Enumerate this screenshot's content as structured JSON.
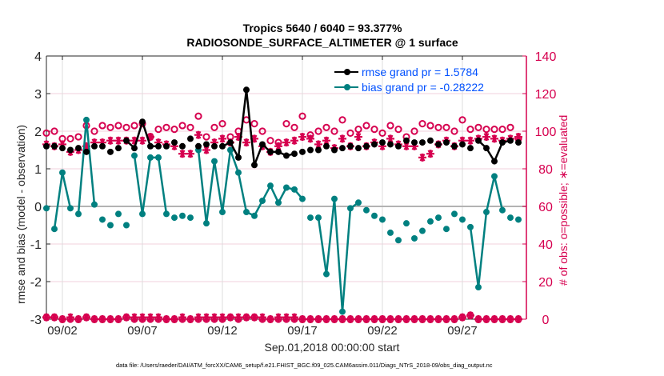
{
  "chart_data": {
    "type": "line",
    "title": [
      "Tropics 5640 / 6040 = 93.377%",
      "RADIOSONDE_SURFACE_ALTIMETER @ 1 surface"
    ],
    "xlabel": "Sep.01,2018 00:00:00 start",
    "ylabel_left": "rmse and bias (model - observation)",
    "ylabel_right": "# of obs: o=possible; ∗=evaluated",
    "footnote": "data file: /Users/raeder/DAI/ATM_forcXX/CAM6_setup/f.e21.FHIST_BGC.f09_025.CAM6assim.011/Diags_NTrS_2018-09/obs_diag_output.nc",
    "x_unit": "days since Sep.01,2018 00:00:00",
    "xlim": [
      1,
      31
    ],
    "ylim_left": [
      -3,
      4
    ],
    "ylim_right": [
      0,
      140
    ],
    "yticks_left": [
      "-3",
      "-2",
      "-1",
      "0",
      "1",
      "2",
      "3",
      "4"
    ],
    "yticks_right": [
      "0",
      "20",
      "40",
      "60",
      "80",
      "100",
      "120",
      "140"
    ],
    "xticks": [
      {
        "day": 2,
        "label": "09/02"
      },
      {
        "day": 7,
        "label": "09/07"
      },
      {
        "day": 12,
        "label": "09/12"
      },
      {
        "day": 17,
        "label": "09/17"
      },
      {
        "day": 22,
        "label": "09/22"
      },
      {
        "day": 27,
        "label": "09/27"
      }
    ],
    "grid": true,
    "legend_position": "top-right",
    "colors": {
      "rmse": "#000000",
      "bias": "#008080",
      "counts": "#d6004f",
      "zero_line": "#b3b3b3"
    },
    "x": [
      1.0,
      1.5,
      2.0,
      2.5,
      3.0,
      3.5,
      4.0,
      4.5,
      5.0,
      5.5,
      6.0,
      6.5,
      7.0,
      7.5,
      8.0,
      8.5,
      9.0,
      9.5,
      10.0,
      10.5,
      11.0,
      11.5,
      12.0,
      12.5,
      13.0,
      13.5,
      14.0,
      14.5,
      15.0,
      15.5,
      16.0,
      16.5,
      17.0,
      17.5,
      18.0,
      18.5,
      19.0,
      19.5,
      20.0,
      20.5,
      21.0,
      21.5,
      22.0,
      22.5,
      23.0,
      23.5,
      24.0,
      24.5,
      25.0,
      25.5,
      26.0,
      26.5,
      27.0,
      27.5,
      28.0,
      28.5,
      29.0,
      29.5,
      30.0,
      30.5
    ],
    "series": [
      {
        "name": "rmse grand pr = 1.5784",
        "marker": "filled-circle",
        "axis": "left",
        "values": [
          1.6,
          1.6,
          1.55,
          1.5,
          1.55,
          1.45,
          1.6,
          1.6,
          1.45,
          1.55,
          1.75,
          1.55,
          2.25,
          1.6,
          1.6,
          1.6,
          1.7,
          1.6,
          1.8,
          1.6,
          1.65,
          1.6,
          1.6,
          1.7,
          1.3,
          3.1,
          1.1,
          1.65,
          1.45,
          1.45,
          1.35,
          1.4,
          1.45,
          1.5,
          1.5,
          1.6,
          1.5,
          1.55,
          1.6,
          1.55,
          1.6,
          1.65,
          1.7,
          1.65,
          1.6,
          1.75,
          1.7,
          1.7,
          1.75,
          1.65,
          1.7,
          1.6,
          1.65,
          1.55,
          1.75,
          1.55,
          1.2,
          1.7,
          1.75,
          1.7
        ]
      },
      {
        "name": "bias grand pr = -0.28222",
        "marker": "filled-circle",
        "axis": "left",
        "values": [
          -0.05,
          -0.6,
          0.9,
          -0.05,
          -0.2,
          2.3,
          0.05,
          -0.35,
          -0.5,
          -0.2,
          -0.5,
          1.35,
          -0.2,
          1.3,
          1.3,
          -0.2,
          -0.3,
          -0.25,
          -0.3,
          1.5,
          -0.45,
          1.2,
          -0.15,
          1.5,
          0.9,
          -0.15,
          -0.25,
          0.15,
          0.55,
          0.1,
          0.5,
          0.45,
          0.2,
          -0.3,
          -0.3,
          -1.8,
          0.2,
          -2.8,
          -0.05,
          0.1,
          -0.1,
          -0.25,
          -0.35,
          -0.7,
          -0.9,
          -0.45,
          -0.85,
          -0.65,
          -0.4,
          -0.3,
          -0.6,
          -0.2,
          -0.35,
          -0.55,
          -2.15,
          -0.15,
          0.8,
          -0.1,
          -0.3,
          -0.35
        ]
      },
      {
        "name": "possible",
        "marker": "open-circle",
        "axis": "right",
        "values": [
          99,
          100,
          96,
          96,
          97,
          103,
          100,
          103,
          102,
          103,
          102,
          103,
          104,
          97,
          101,
          102,
          101,
          103,
          102,
          108,
          97,
          102,
          104,
          97,
          100,
          106,
          104,
          100,
          95,
          94,
          104,
          102,
          108,
          98,
          100,
          102,
          100,
          106,
          99,
          101,
          103,
          101,
          99,
          103,
          101,
          97,
          100,
          104,
          103,
          102,
          102,
          100,
          106,
          101,
          102,
          101,
          101,
          101,
          102,
          96
        ]
      },
      {
        "name": "evaluated",
        "marker": "asterisk",
        "axis": "right",
        "values": [
          93,
          92,
          93,
          89,
          90,
          92,
          94,
          94,
          95,
          95,
          95,
          95,
          95,
          97,
          94,
          93,
          92,
          88,
          88,
          98,
          90,
          94,
          96,
          94,
          97,
          94,
          96,
          92,
          89,
          92,
          94,
          95,
          97,
          96,
          93,
          95,
          91,
          96,
          92,
          97,
          92,
          94,
          92,
          96,
          93,
          92,
          92,
          86,
          88,
          93,
          95,
          92,
          95,
          95,
          96,
          97,
          96,
          95,
          96,
          97
        ]
      },
      {
        "name": "possible_bottom",
        "marker": "open-circle",
        "axis": "right",
        "values": [
          1,
          1,
          0,
          0,
          0,
          1,
          0,
          0,
          0,
          0,
          1,
          0,
          0,
          0,
          0,
          0,
          0,
          0,
          0,
          0,
          0,
          0,
          0,
          1,
          0,
          1,
          1,
          0,
          0,
          0,
          0,
          0,
          0,
          0,
          0,
          0,
          0,
          0,
          0,
          0,
          0,
          0,
          0,
          0,
          0,
          0,
          0,
          0,
          0,
          0,
          0,
          0,
          1,
          2,
          0,
          0,
          0,
          0,
          0,
          0
        ]
      },
      {
        "name": "evaluated_bottom",
        "marker": "asterisk",
        "axis": "right",
        "values": [
          1,
          1,
          0,
          1,
          0,
          1,
          0,
          0,
          0,
          0,
          1,
          1,
          1,
          1,
          1,
          0,
          0,
          1,
          0,
          1,
          1,
          1,
          1,
          1,
          1,
          1,
          1,
          1,
          0,
          1,
          1,
          1,
          0,
          0,
          0,
          0,
          0,
          0,
          0,
          0,
          0,
          0,
          0,
          0,
          0,
          0,
          0,
          0,
          0,
          0,
          0,
          0,
          1,
          2,
          0,
          0,
          0,
          0,
          0,
          0
        ]
      }
    ],
    "legend": [
      {
        "label": "rmse grand pr = 1.5784",
        "color": "#000000"
      },
      {
        "label": "bias grand pr = -0.28222",
        "color": "#008080"
      }
    ]
  }
}
